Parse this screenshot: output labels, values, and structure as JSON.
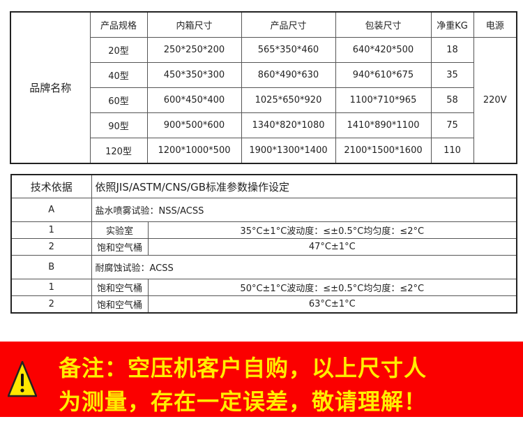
{
  "spec_table": {
    "brand_label": "品牌名称",
    "headers": [
      "产品规格",
      "内箱尺寸",
      "产品尺寸",
      "包装尺寸",
      "净重KG",
      "电源"
    ],
    "power": "220V",
    "rows": [
      [
        "20型",
        "250*250*200",
        "565*350*460",
        "640*420*500",
        "18"
      ],
      [
        "40型",
        "450*350*300",
        "860*490*630",
        "940*610*675",
        "35"
      ],
      [
        "60型",
        "600*450*400",
        "1025*650*920",
        "1100*710*965",
        "58"
      ],
      [
        "90型",
        "900*500*600",
        "1340*820*1080",
        "1410*890*1100",
        "75"
      ],
      [
        "120型",
        "1200*1000*500",
        "1900*1300*1400",
        "2100*1500*1600",
        "110"
      ]
    ]
  },
  "tech_table": {
    "header_label": "技术依据",
    "header_value": "依照JIS/ASTM/CNS/GB标准参数操作设定",
    "sections": [
      {
        "id": "A",
        "title": "盐水喷雾试验：NSS/ACSS",
        "rows": [
          [
            "1",
            "实验室",
            "35°C±1°C波动度：≤±0.5°C均匀度：≤2°C"
          ],
          [
            "2",
            "饱和空气桶",
            "47°C±1°C"
          ]
        ]
      },
      {
        "id": "B",
        "title": "耐腐蚀试验：ACSS",
        "rows": [
          [
            "1",
            "饱和空气桶",
            "50°C±1°C波动度：≤±0.5°C均匀度：≤2°C"
          ],
          [
            "2",
            "饱和空气桶",
            "63°C±1°C"
          ]
        ]
      }
    ]
  },
  "notice": {
    "icon": "warning-triangle-icon",
    "line1": "备注：空压机客户自购，以上尺寸人",
    "line2": "为测量，存在一定误差，敬请理解！",
    "bg_color": "#fb0000",
    "text_color": "#ffee00"
  }
}
